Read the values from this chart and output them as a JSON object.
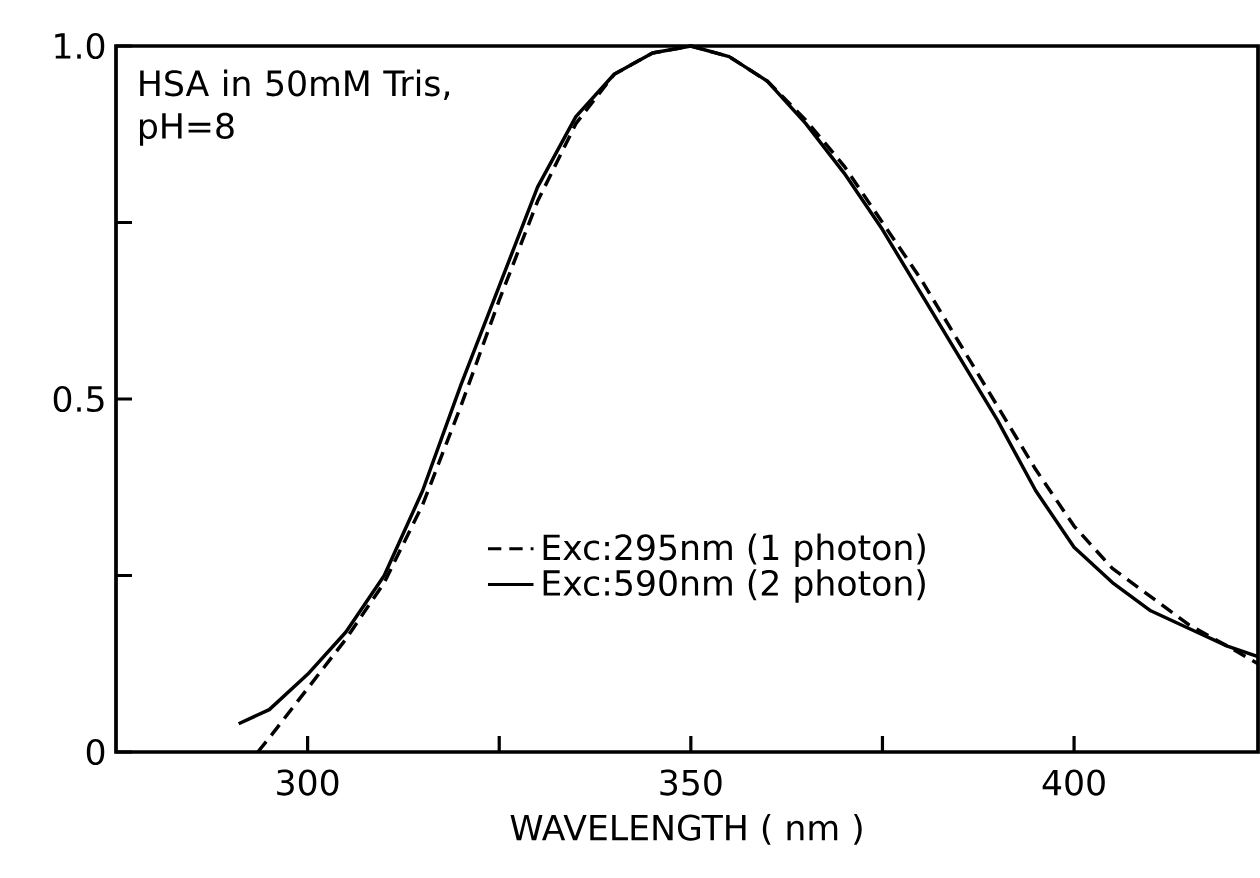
{
  "chart_data": {
    "type": "line",
    "xlabel": "WAVELENGTH ( nm )",
    "annotations": [
      "HSA in 50mM Tris, pH=8"
    ],
    "xlim": [
      275,
      424
    ],
    "ylim": [
      0,
      1.0
    ],
    "xticks": [
      300,
      {
        "value": 325,
        "label": null
      },
      350,
      {
        "value": 375,
        "label": null
      },
      400
    ],
    "yticks": [
      0,
      {
        "value": 0.25,
        "label": null
      },
      0.5,
      {
        "value": 0.75,
        "label": null
      },
      {
        "value": 1.0,
        "label": "1.0"
      }
    ],
    "legend": "bottom",
    "grid": false,
    "marker": "none",
    "series": [
      {
        "name": "Exc:295nm (1 photon)",
        "color": "#000000",
        "line_style": "dashed",
        "x": [
          293.5,
          295,
          300,
          305,
          310,
          315,
          320,
          325,
          330,
          335,
          340,
          345,
          350,
          355,
          360,
          365,
          370,
          375,
          380,
          385,
          390,
          395,
          400,
          405,
          410,
          415,
          420,
          424
        ],
        "values": [
          0,
          0.02,
          0.09,
          0.16,
          0.24,
          0.35,
          0.49,
          0.64,
          0.78,
          0.89,
          0.96,
          0.99,
          1.0,
          0.985,
          0.95,
          0.895,
          0.83,
          0.75,
          0.67,
          0.58,
          0.49,
          0.4,
          0.32,
          0.26,
          0.22,
          0.18,
          0.15,
          0.125
        ]
      },
      {
        "name": "Exc:590nm (2 photon)",
        "color": "#000000",
        "line_style": "solid",
        "x": [
          291,
          295,
          300,
          305,
          310,
          315,
          320,
          325,
          330,
          335,
          340,
          345,
          350,
          355,
          360,
          365,
          370,
          375,
          380,
          385,
          390,
          395,
          400,
          405,
          410,
          415,
          420,
          424
        ],
        "values": [
          0.04,
          0.06,
          0.11,
          0.17,
          0.25,
          0.37,
          0.52,
          0.66,
          0.8,
          0.9,
          0.96,
          0.99,
          1.0,
          0.985,
          0.95,
          0.89,
          0.82,
          0.74,
          0.65,
          0.56,
          0.47,
          0.37,
          0.29,
          0.24,
          0.2,
          0.175,
          0.15,
          0.135
        ]
      }
    ]
  }
}
